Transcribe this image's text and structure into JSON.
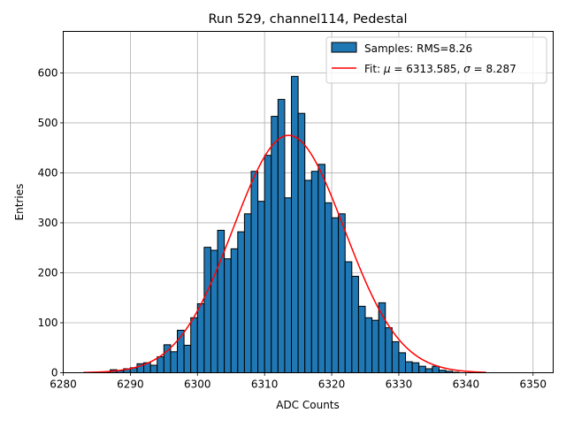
{
  "chart_data": {
    "type": "bar",
    "title": "Run 529, channel114, Pedestal",
    "xlabel": "ADC Counts",
    "ylabel": "Entries",
    "xlim": [
      6280,
      6353
    ],
    "ylim": [
      0,
      683
    ],
    "xticks": [
      6280,
      6290,
      6300,
      6310,
      6320,
      6330,
      6340,
      6350
    ],
    "yticks": [
      0,
      100,
      200,
      300,
      400,
      500,
      600
    ],
    "grid": true,
    "legend_position": "top-right",
    "bin_width": 1,
    "histogram": {
      "name": "Samples: RMS=8.26",
      "color": "#1f77b4",
      "edge_color": "#000000",
      "bin_starts": [
        6283,
        6284,
        6285,
        6286,
        6287,
        6288,
        6289,
        6290,
        6291,
        6292,
        6293,
        6294,
        6295,
        6296,
        6297,
        6298,
        6299,
        6300,
        6301,
        6302,
        6303,
        6304,
        6305,
        6306,
        6307,
        6308,
        6309,
        6310,
        6311,
        6312,
        6313,
        6314,
        6315,
        6316,
        6317,
        6318,
        6319,
        6320,
        6321,
        6322,
        6323,
        6324,
        6325,
        6326,
        6327,
        6328,
        6329,
        6330,
        6331,
        6332,
        6333,
        6334,
        6335,
        6336,
        6337,
        6338,
        6339,
        6340,
        6341,
        6342
      ],
      "counts": [
        0,
        0,
        1,
        1,
        6,
        4,
        8,
        10,
        18,
        20,
        15,
        32,
        56,
        42,
        85,
        55,
        110,
        138,
        251,
        245,
        285,
        228,
        248,
        282,
        318,
        403,
        343,
        435,
        513,
        547,
        350,
        593,
        519,
        385,
        403,
        417,
        340,
        310,
        318,
        222,
        193,
        133,
        110,
        105,
        140,
        90,
        62,
        40,
        22,
        20,
        13,
        8,
        13,
        5,
        3,
        1,
        0,
        0,
        0,
        0
      ]
    },
    "fit": {
      "name": "Fit: μ = 6313.585, σ = 8.287",
      "color": "#ff0000",
      "mu": 6313.585,
      "sigma": 8.287,
      "amplitude": 475,
      "x_range": [
        6283,
        6343
      ]
    }
  },
  "legend": {
    "samples_label": "Samples: RMS=8.26",
    "fit_prefix": "Fit: ",
    "mu_symbol": "μ",
    "mu_text": " = 6313.585, ",
    "sigma_symbol": "σ",
    "sigma_text": " = 8.287"
  }
}
